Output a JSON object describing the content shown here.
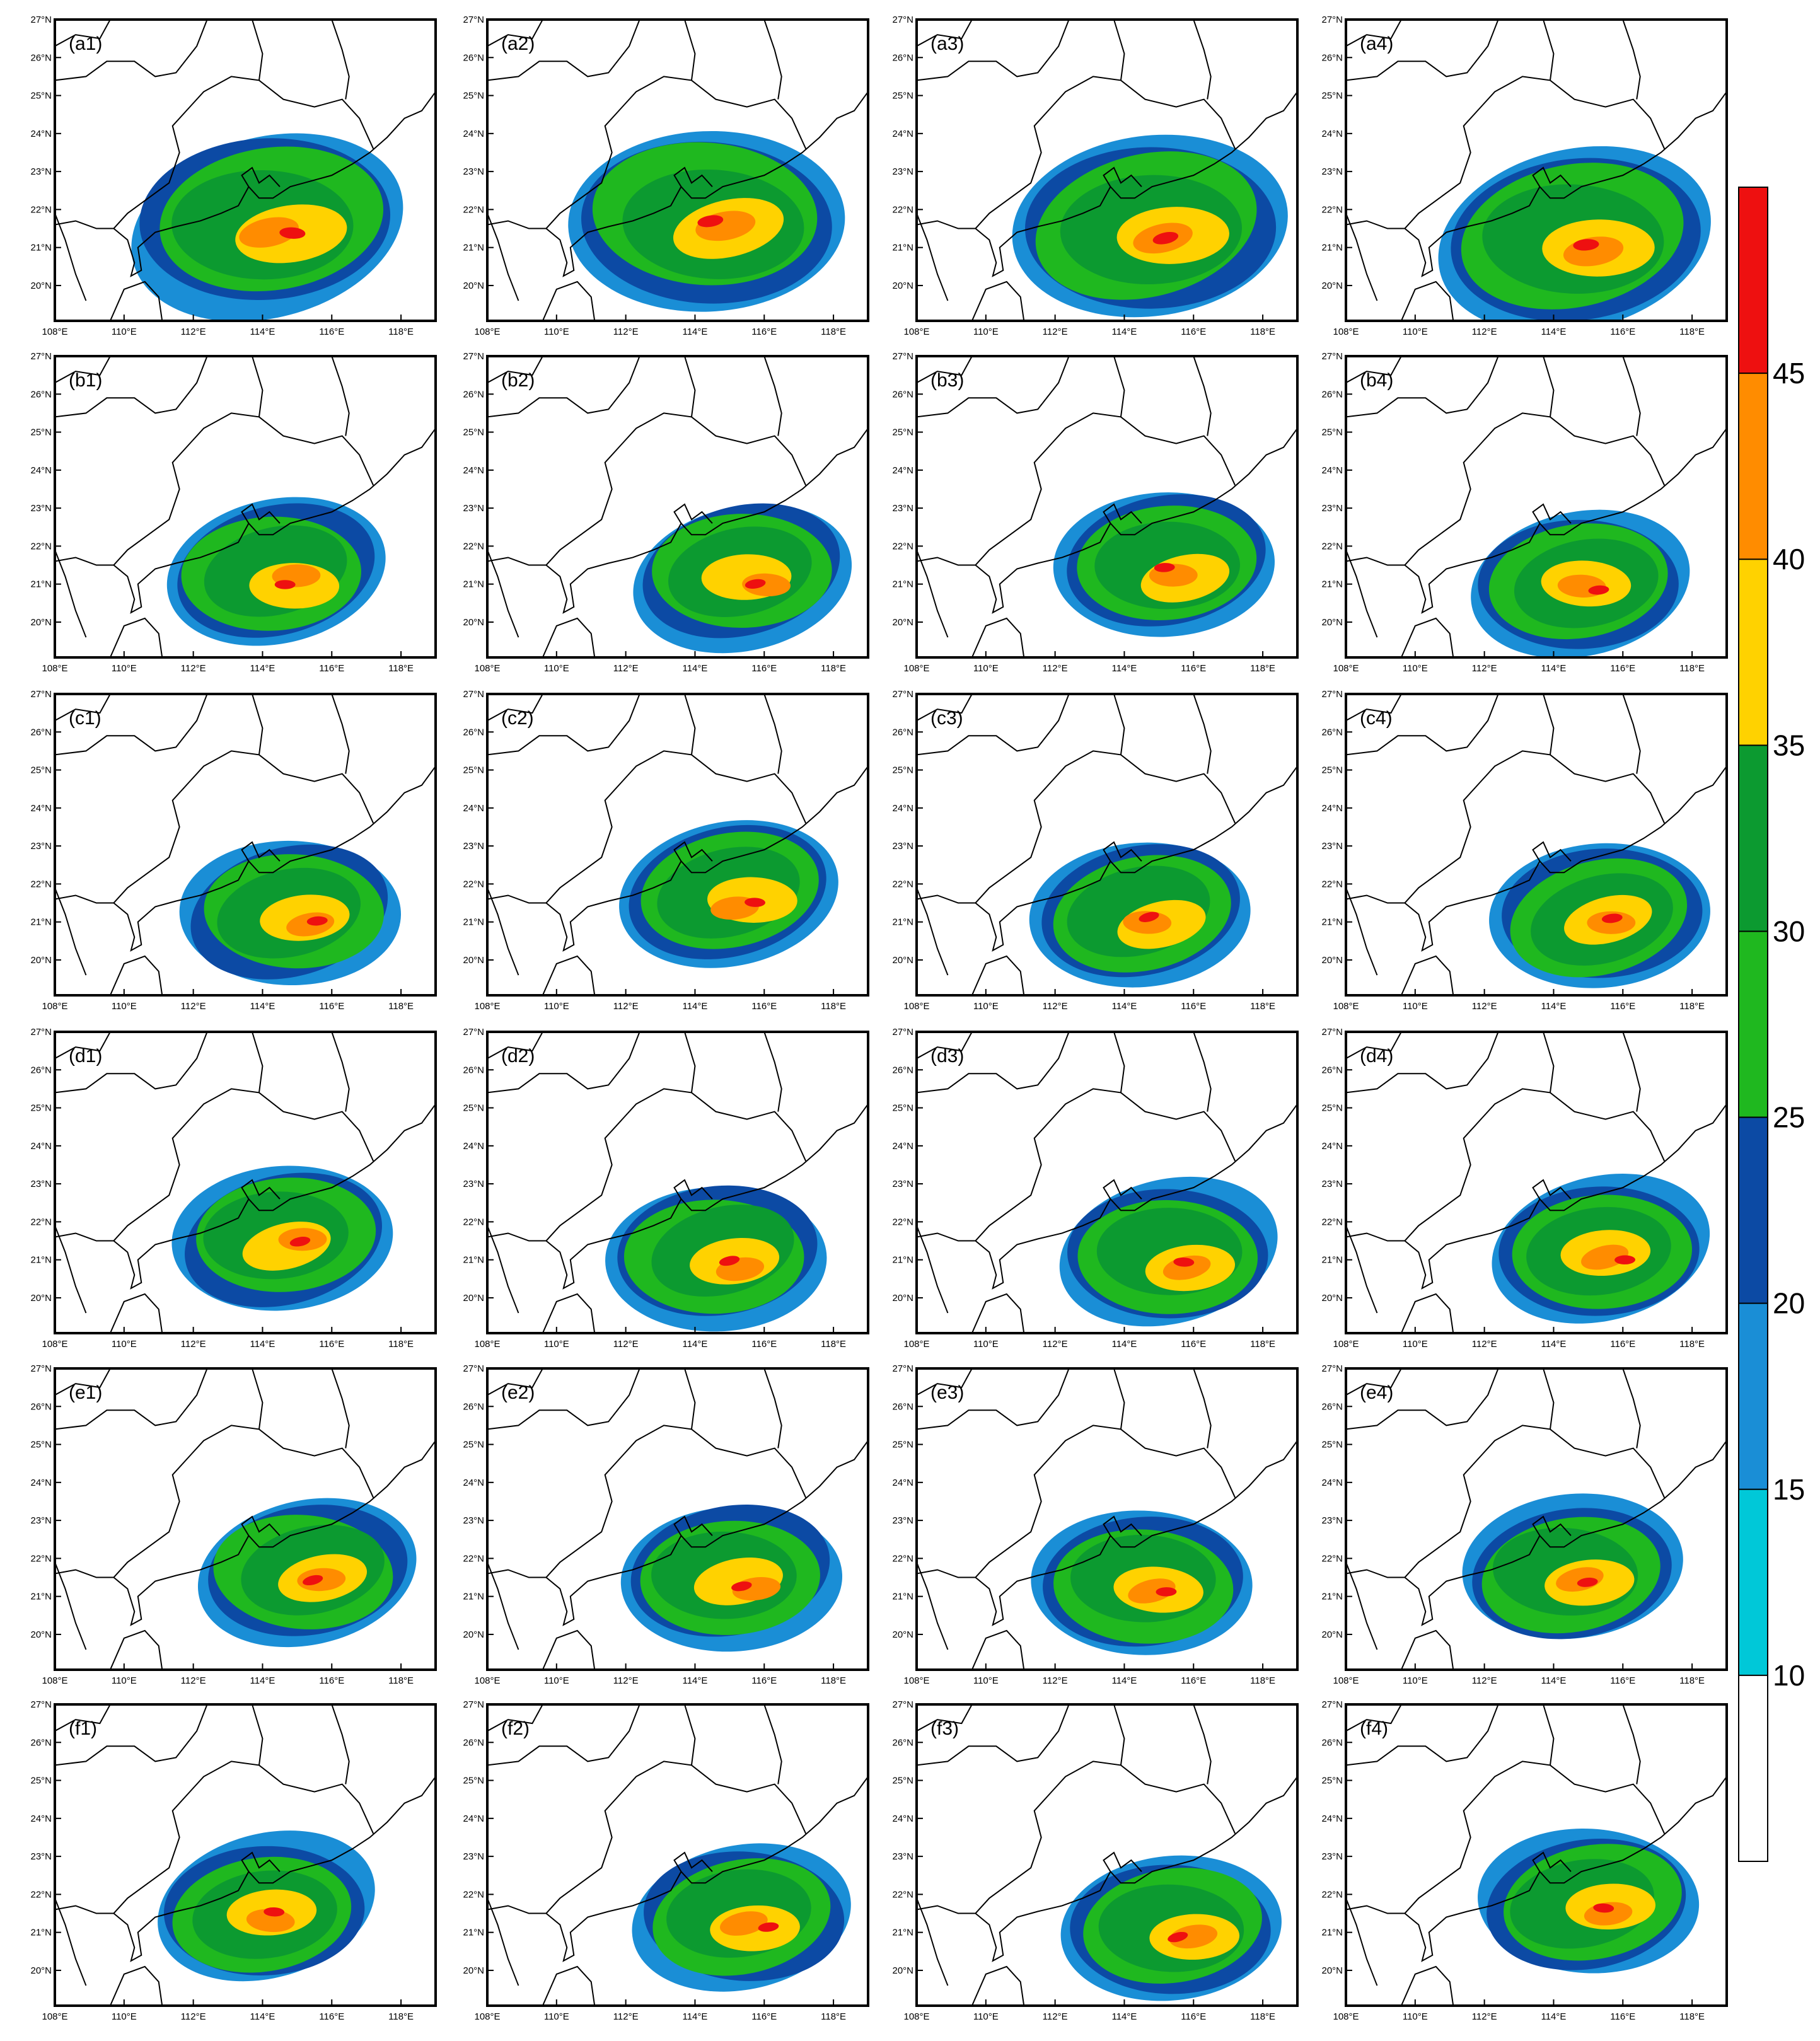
{
  "panels": [
    "(a1)",
    "(a2)",
    "(a3)",
    "(a4)",
    "(b1)",
    "(b2)",
    "(b3)",
    "(b4)",
    "(c1)",
    "(c2)",
    "(c3)",
    "(c4)",
    "(d1)",
    "(d2)",
    "(d3)",
    "(d4)",
    "(e1)",
    "(e2)",
    "(e3)",
    "(e4)",
    "(f1)",
    "(f2)",
    "(f3)",
    "(f4)"
  ],
  "lon_range": [
    108,
    119
  ],
  "lat_range": [
    19.07,
    27
  ],
  "lon_ticks": [
    {
      "value": 108,
      "label": "108°E"
    },
    {
      "value": 110,
      "label": "110°E"
    },
    {
      "value": 112,
      "label": "112°E"
    },
    {
      "value": 114,
      "label": "114°E"
    },
    {
      "value": 116,
      "label": "116°E"
    },
    {
      "value": 118,
      "label": "118°E"
    }
  ],
  "lat_ticks": [
    {
      "value": 20,
      "label": "20°N"
    },
    {
      "value": 21,
      "label": "21°N"
    },
    {
      "value": 22,
      "label": "22°N"
    },
    {
      "value": 23,
      "label": "23°N"
    },
    {
      "value": 24,
      "label": "24°N"
    },
    {
      "value": 25,
      "label": "25°N"
    },
    {
      "value": 26,
      "label": "26°N"
    },
    {
      "value": 27,
      "label": "27°N"
    }
  ],
  "colorbar": {
    "ticks": [
      10,
      15,
      20,
      25,
      30,
      35,
      40,
      45
    ],
    "colors": [
      "#ffffff",
      "#00c8d8",
      "#1a8ed6",
      "#0c4aa4",
      "#1fb81f",
      "#0c9a30",
      "#ffd200",
      "#ff8c00",
      "#ee1010"
    ]
  }
}
